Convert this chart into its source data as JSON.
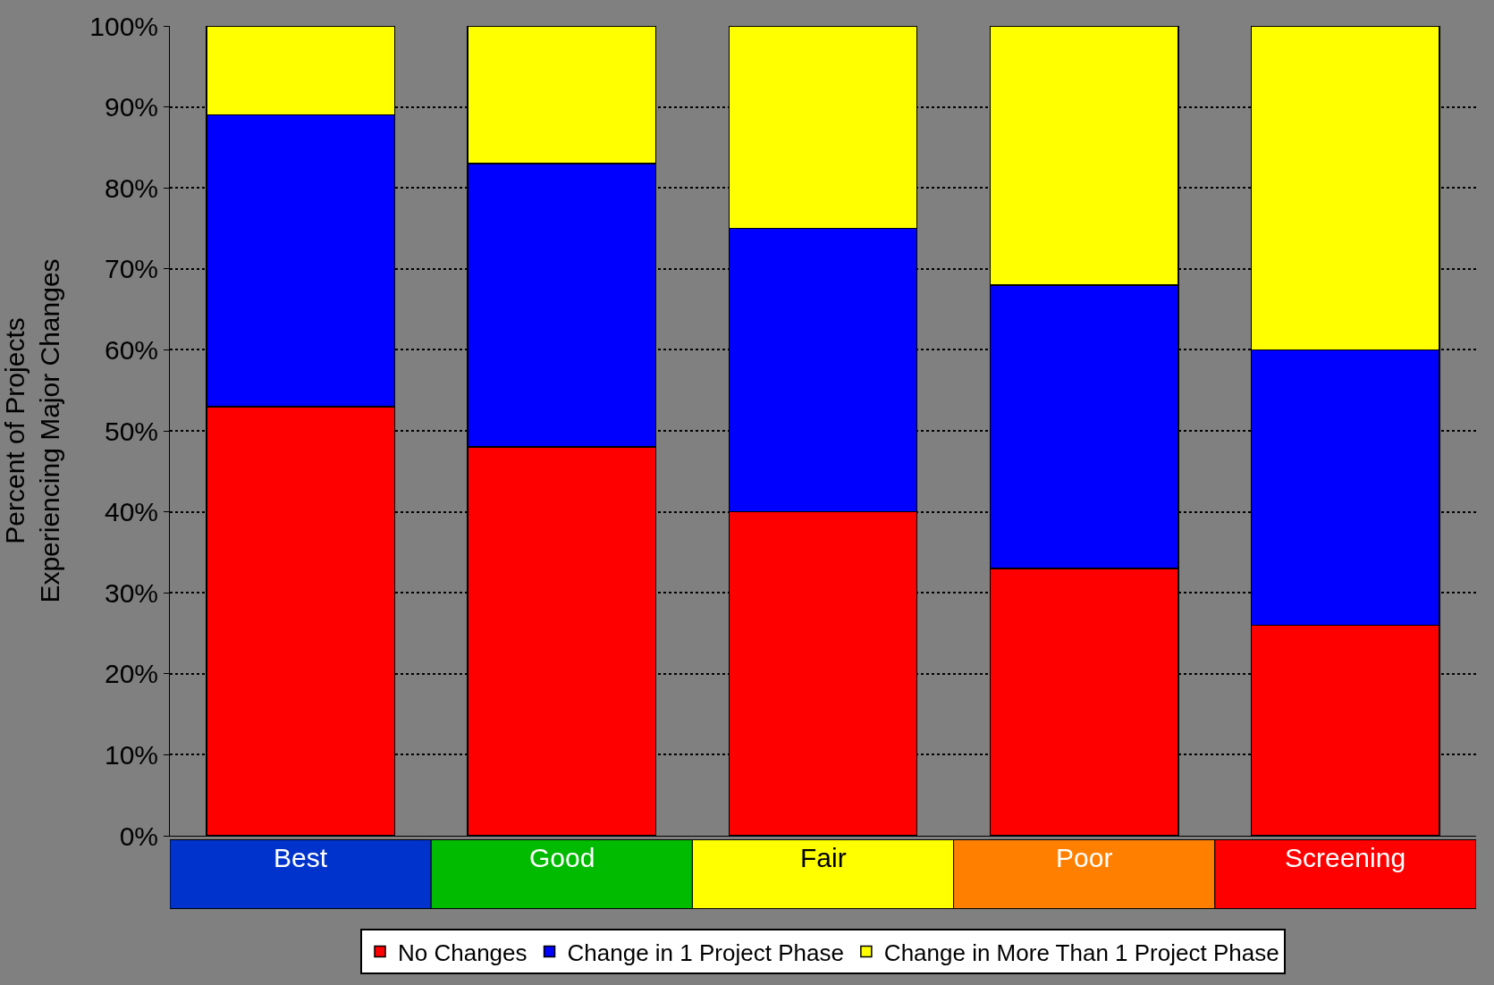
{
  "chart_data": {
    "type": "bar",
    "stacked": true,
    "ylabel": "Percent of Projects\nExperiencing Major Changes",
    "categories": [
      "Best",
      "Good",
      "Fair",
      "Poor",
      "Screening"
    ],
    "series": [
      {
        "name": "No Changes",
        "color": "#ff0000",
        "values": [
          53,
          48,
          40,
          33,
          26
        ]
      },
      {
        "name": "Change in 1 Project Phase",
        "color": "#0000ff",
        "values": [
          36,
          35,
          35,
          35,
          34
        ]
      },
      {
        "name": "Change in More Than 1 Project Phase",
        "color": "#ffff00",
        "values": [
          11,
          17,
          25,
          32,
          40
        ]
      }
    ],
    "ylim": [
      0,
      100
    ],
    "yticks": [
      {
        "value": 0,
        "label": "0%"
      },
      {
        "value": 10,
        "label": "10%"
      },
      {
        "value": 20,
        "label": "20%"
      },
      {
        "value": 30,
        "label": "30%"
      },
      {
        "value": 40,
        "label": "40%"
      },
      {
        "value": 50,
        "label": "50%"
      },
      {
        "value": 60,
        "label": "60%"
      },
      {
        "value": 70,
        "label": "70%"
      },
      {
        "value": 80,
        "label": "80%"
      },
      {
        "value": 90,
        "label": "90%"
      },
      {
        "value": 100,
        "label": "100%"
      }
    ],
    "grid": "y",
    "legend": "bottom"
  }
}
